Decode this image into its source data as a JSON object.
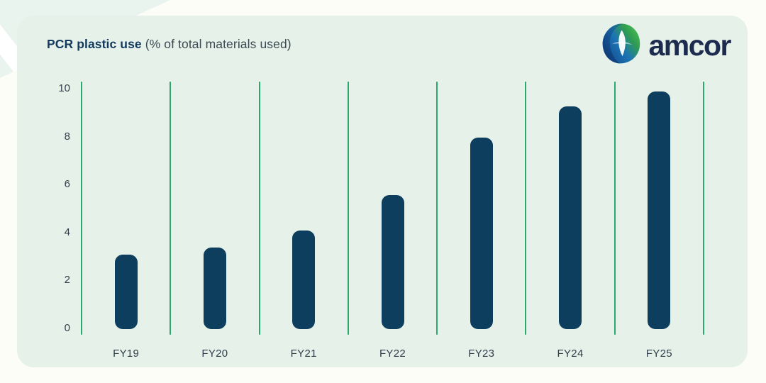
{
  "card": {
    "title_bold": "PCR plastic use",
    "title_rest": " (% of total materials used)"
  },
  "brand": {
    "name": "amcor",
    "logo_icon": "amcor-swirl-icon",
    "wordmark_color": "#1d2b4e"
  },
  "colors": {
    "card_background": "#e5f1e9",
    "page_background": "#fdfdf8",
    "bar": "#0d3e5d",
    "gridline_green": "#2aa96b",
    "title_bold": "#14395e",
    "title_rest": "#3c4a52",
    "tick_text": "#333f4a"
  },
  "chart_data": {
    "type": "bar",
    "title": "PCR plastic use (% of total materials used)",
    "categories": [
      "FY19",
      "FY20",
      "FY21",
      "FY22",
      "FY23",
      "FY24",
      "FY25"
    ],
    "values": [
      3.1,
      3.4,
      4.1,
      5.6,
      8.0,
      9.3,
      9.9
    ],
    "xlabel": "",
    "ylabel": "% of total materials used",
    "ylim": [
      0,
      10
    ],
    "yticks": [
      0,
      2,
      4,
      6,
      8,
      10
    ],
    "grid": "vertical lines between categories, green",
    "legend": "none",
    "bar_color": "#0d3e5d",
    "grid_color": "#2aa96b"
  }
}
